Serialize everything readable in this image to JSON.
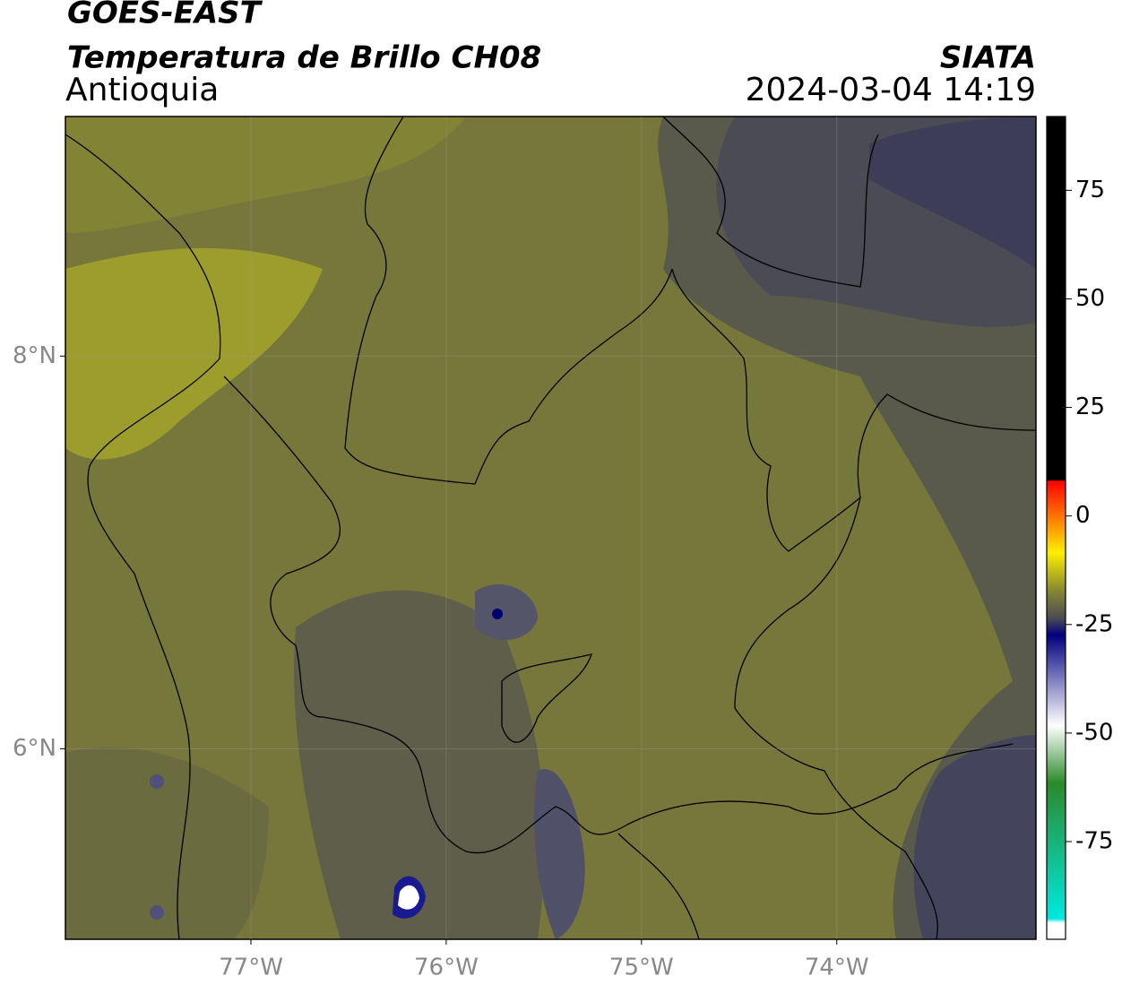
{
  "header": {
    "title": "GOES-EAST",
    "subtitle": "Temperatura de Brillo CH08",
    "region": "Antioquia",
    "source": "SIATA",
    "datetime": "2024-03-04 14:19"
  },
  "map": {
    "xlim": [
      -77.95,
      -72.98
    ],
    "ylim": [
      5.03,
      9.22
    ],
    "xticks": [
      {
        "value": -77,
        "label": "77°W"
      },
      {
        "value": -76,
        "label": "76°W"
      },
      {
        "value": -75,
        "label": "75°W"
      },
      {
        "value": -74,
        "label": "74°W"
      }
    ],
    "yticks": [
      {
        "value": 8,
        "label": "8°N"
      },
      {
        "value": 6,
        "label": "6°N"
      }
    ]
  },
  "colorbar": {
    "lim": [
      -97.5,
      92
    ],
    "ticks": [
      75,
      50,
      25,
      0,
      -25,
      -50,
      -75
    ]
  }
}
